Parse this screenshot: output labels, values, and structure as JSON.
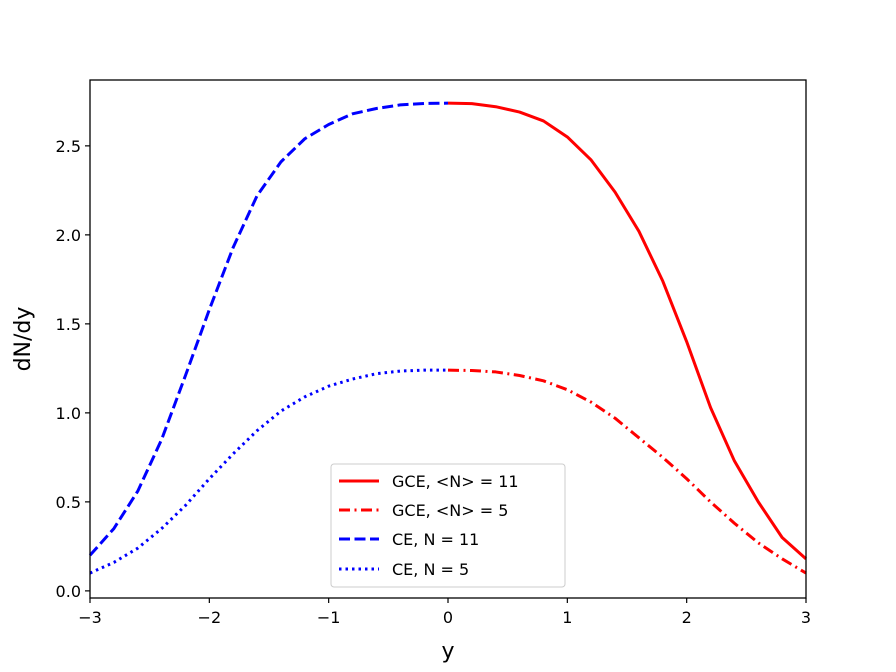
{
  "chart_data": {
    "type": "line",
    "title": "",
    "xlabel": "y",
    "ylabel": "dN/dy",
    "xlim": [
      -3,
      3
    ],
    "ylim": [
      -0.04,
      2.87
    ],
    "xticks": [
      -3,
      -2,
      -1,
      0,
      1,
      2,
      3
    ],
    "xtick_labels": [
      "−3",
      "−2",
      "−1",
      "0",
      "1",
      "2",
      "3"
    ],
    "yticks": [
      0.0,
      0.5,
      1.0,
      1.5,
      2.0,
      2.5
    ],
    "ytick_labels": [
      "0.0",
      "0.5",
      "1.0",
      "1.5",
      "2.0",
      "2.5"
    ],
    "grid": false,
    "legend_position": "lower-center",
    "series": [
      {
        "name": "GCE, <N> = 11",
        "color": "#ff0000",
        "style": "solid",
        "x": [
          0,
          0.2,
          0.4,
          0.6,
          0.8,
          1.0,
          1.2,
          1.4,
          1.6,
          1.8,
          2.0,
          2.2,
          2.4,
          2.6,
          2.8,
          3.0
        ],
        "y": [
          2.74,
          2.737,
          2.72,
          2.69,
          2.64,
          2.55,
          2.42,
          2.24,
          2.02,
          1.74,
          1.4,
          1.03,
          0.73,
          0.5,
          0.3,
          0.18
        ]
      },
      {
        "name": "GCE, <N> = 5",
        "color": "#ff0000",
        "style": "dashdot",
        "x": [
          0,
          0.2,
          0.4,
          0.6,
          0.8,
          1.0,
          1.2,
          1.4,
          1.6,
          1.8,
          2.0,
          2.2,
          2.4,
          2.6,
          2.8,
          3.0
        ],
        "y": [
          1.24,
          1.238,
          1.23,
          1.21,
          1.18,
          1.13,
          1.06,
          0.97,
          0.86,
          0.75,
          0.63,
          0.5,
          0.38,
          0.27,
          0.18,
          0.1
        ]
      },
      {
        "name": "CE, N = 11",
        "color": "#0000ff",
        "style": "dashed",
        "x": [
          -3.0,
          -2.8,
          -2.6,
          -2.4,
          -2.2,
          -2.0,
          -1.8,
          -1.6,
          -1.4,
          -1.2,
          -1.0,
          -0.8,
          -0.6,
          -0.4,
          -0.2,
          0
        ],
        "y": [
          0.2,
          0.35,
          0.56,
          0.85,
          1.21,
          1.58,
          1.93,
          2.22,
          2.41,
          2.54,
          2.62,
          2.68,
          2.71,
          2.73,
          2.738,
          2.74
        ]
      },
      {
        "name": "CE, N = 5",
        "color": "#0000ff",
        "style": "dotted",
        "x": [
          -3.0,
          -2.8,
          -2.6,
          -2.4,
          -2.2,
          -2.0,
          -1.8,
          -1.6,
          -1.4,
          -1.2,
          -1.0,
          -0.8,
          -0.6,
          -0.4,
          -0.2,
          0
        ],
        "y": [
          0.1,
          0.16,
          0.24,
          0.35,
          0.48,
          0.63,
          0.77,
          0.9,
          1.01,
          1.09,
          1.15,
          1.19,
          1.22,
          1.235,
          1.24,
          1.24
        ]
      }
    ]
  }
}
